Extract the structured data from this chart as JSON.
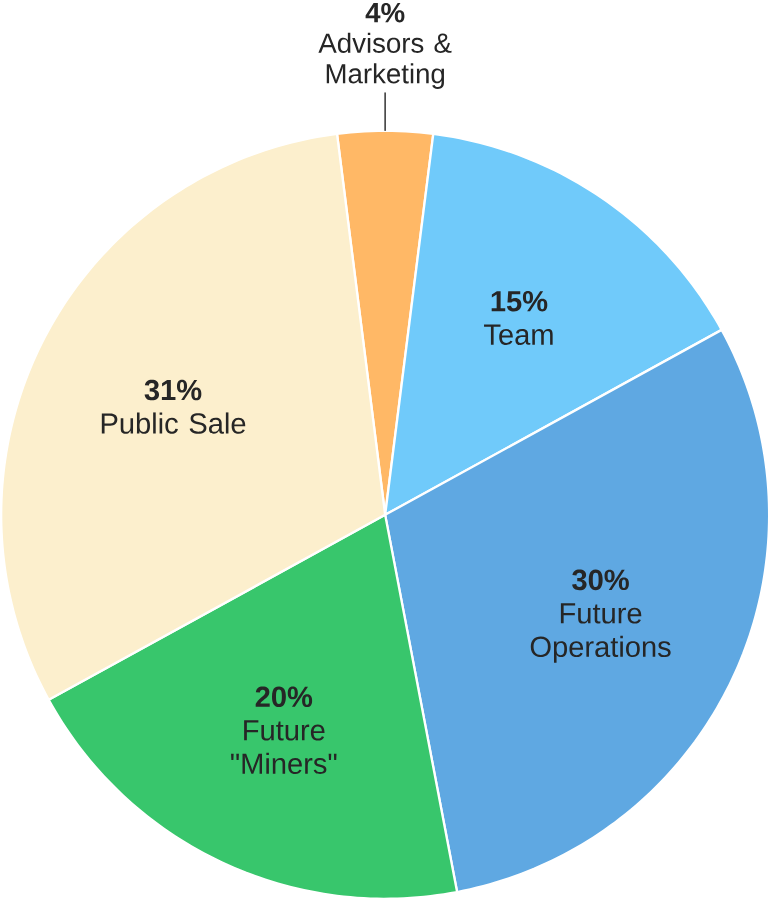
{
  "chart_data": {
    "type": "pie",
    "categories": [
      "Advisors & Marketing",
      "Team",
      "Future Operations",
      "Future \"Miners\"",
      "Public Sale"
    ],
    "values": [
      4,
      15,
      30,
      20,
      31
    ],
    "value_labels": [
      "4%",
      "15%",
      "30%",
      "20%",
      "31%"
    ],
    "colors": [
      "#ffb866",
      "#70cafa",
      "#5fa8e2",
      "#38c66c",
      "#fcefcd"
    ]
  }
}
